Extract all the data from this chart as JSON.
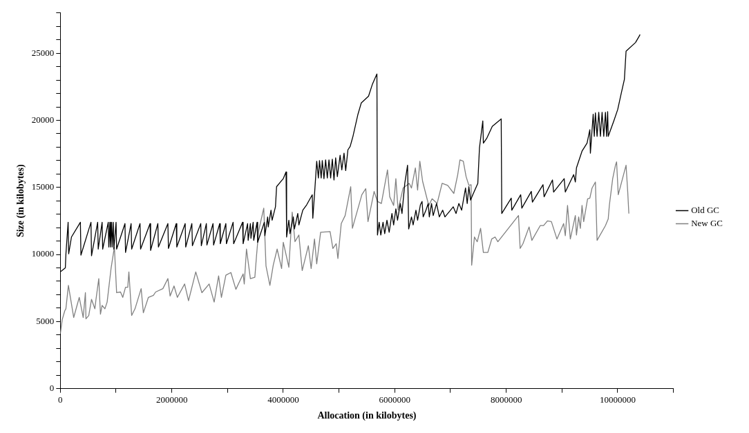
{
  "chart_data": {
    "type": "line",
    "xlabel": "Allocation (in kilobytes)",
    "ylabel": "Size (in kilobytes)",
    "legend": "right",
    "xlim": [
      0,
      11000000
    ],
    "xticks": [
      0,
      {
        "value": 1000000,
        "label": null
      },
      2000000,
      {
        "value": 3000000,
        "label": null
      },
      4000000,
      {
        "value": 5000000,
        "label": null
      },
      6000000,
      {
        "value": 7000000,
        "label": null
      },
      8000000,
      {
        "value": 9000000,
        "label": null
      },
      10000000,
      {
        "value": 11000000,
        "label": null
      }
    ],
    "ylim": [
      0,
      28000
    ],
    "yticks": [
      0,
      {
        "value": 1000,
        "label": null
      },
      {
        "value": 2000,
        "label": null
      },
      {
        "value": 3000,
        "label": null
      },
      {
        "value": 4000,
        "label": null
      },
      5000,
      {
        "value": 6000,
        "label": null
      },
      {
        "value": 7000,
        "label": null
      },
      {
        "value": 8000,
        "label": null
      },
      {
        "value": 9000,
        "label": null
      },
      10000,
      {
        "value": 11000,
        "label": null
      },
      {
        "value": 12000,
        "label": null
      },
      {
        "value": 13000,
        "label": null
      },
      {
        "value": 14000,
        "label": null
      },
      15000,
      {
        "value": 16000,
        "label": null
      },
      {
        "value": 17000,
        "label": null
      },
      {
        "value": 18000,
        "label": null
      },
      {
        "value": 19000,
        "label": null
      },
      20000,
      {
        "value": 21000,
        "label": null
      },
      {
        "value": 22000,
        "label": null
      },
      {
        "value": 23000,
        "label": null
      },
      {
        "value": 24000,
        "label": null
      },
      25000,
      {
        "value": 26000,
        "label": null
      },
      {
        "value": 27000,
        "label": null
      },
      {
        "value": 28000,
        "label": null
      }
    ],
    "series": [
      {
        "name": "Old GC",
        "color": "#000000",
        "x": [
          0,
          90000,
          100000,
          140000,
          150000,
          200000,
          360000,
          370000,
          550000,
          560000,
          670000,
          680000,
          750000,
          760000,
          860000,
          870000,
          890000,
          900000,
          920000,
          930000,
          950000,
          960000,
          1000000,
          1010000,
          1160000,
          1170000,
          1270000,
          1280000,
          1430000,
          1440000,
          1610000,
          1620000,
          1750000,
          1760000,
          1930000,
          1940000,
          2080000,
          2090000,
          2240000,
          2250000,
          2360000,
          2370000,
          2520000,
          2530000,
          2620000,
          2630000,
          2740000,
          2750000,
          2860000,
          2870000,
          2970000,
          2980000,
          3100000,
          3110000,
          3270000,
          3280000,
          3360000,
          3370000,
          3410000,
          3420000,
          3460000,
          3470000,
          3530000,
          3540000,
          3660000,
          3670000,
          3720000,
          3730000,
          3780000,
          3800000,
          3860000,
          3880000,
          3950000,
          4000000,
          4050000,
          4060000,
          4100000,
          4120000,
          4180000,
          4200000,
          4260000,
          4280000,
          4350000,
          4420000,
          4520000,
          4530000,
          4560000,
          4600000,
          4630000,
          4650000,
          4680000,
          4700000,
          4730000,
          4760000,
          4790000,
          4820000,
          4850000,
          4880000,
          4910000,
          4940000,
          4970000,
          5020000,
          5050000,
          5090000,
          5120000,
          5160000,
          5200000,
          5250000,
          5340000,
          5400000,
          5530000,
          5600000,
          5680000,
          5690000,
          5720000,
          5750000,
          5790000,
          5820000,
          5860000,
          5900000,
          5950000,
          5980000,
          6020000,
          6050000,
          6100000,
          6130000,
          6180000,
          6230000,
          6250000,
          6300000,
          6330000,
          6380000,
          6410000,
          6460000,
          6490000,
          6510000,
          6560000,
          6600000,
          6620000,
          6660000,
          6690000,
          6750000,
          6800000,
          6860000,
          6900000,
          7000000,
          7050000,
          7100000,
          7150000,
          7200000,
          7270000,
          7300000,
          7330000,
          7360000,
          7400000,
          7490000,
          7520000,
          7580000,
          7590000,
          7650000,
          7750000,
          7910000,
          7920000,
          8090000,
          8100000,
          8260000,
          8280000,
          8450000,
          8470000,
          8660000,
          8680000,
          8830000,
          8850000,
          9040000,
          9060000,
          9210000,
          9240000,
          9260000,
          9360000,
          9450000,
          9500000,
          9510000,
          9560000,
          9580000,
          9600000,
          9630000,
          9660000,
          9690000,
          9720000,
          9750000,
          9780000,
          9800000,
          9820000,
          9830000,
          9930000,
          10000000,
          10060000,
          10120000,
          10150000,
          10320000,
          10390000,
          10400000
        ],
        "values": [
          8700,
          9000,
          10000,
          12400,
          10050,
          11300,
          12400,
          9950,
          12400,
          9900,
          12400,
          10400,
          12400,
          10400,
          12400,
          10550,
          12400,
          10550,
          12400,
          10550,
          12400,
          10400,
          12400,
          10400,
          12300,
          10150,
          12300,
          10400,
          12300,
          10400,
          12300,
          10300,
          12300,
          10550,
          12300,
          10450,
          12300,
          10550,
          12300,
          10550,
          12300,
          10650,
          12300,
          10650,
          12300,
          10700,
          12300,
          10700,
          12300,
          10800,
          12300,
          10800,
          12400,
          10800,
          12400,
          10800,
          12300,
          11050,
          12300,
          11200,
          12400,
          11050,
          12400,
          10900,
          12400,
          11400,
          12800,
          12050,
          13300,
          12550,
          13550,
          15050,
          15400,
          15650,
          16150,
          11300,
          12550,
          11550,
          12800,
          11900,
          13050,
          12200,
          13300,
          13700,
          14450,
          12700,
          14450,
          16950,
          15700,
          17000,
          15700,
          17000,
          15650,
          17050,
          15700,
          17050,
          15700,
          17100,
          15550,
          17200,
          15800,
          17400,
          16300,
          17550,
          16250,
          17800,
          18050,
          18800,
          20450,
          21300,
          21800,
          22700,
          23450,
          11450,
          12400,
          11450,
          12400,
          11550,
          12550,
          11650,
          13050,
          12200,
          13400,
          12550,
          13800,
          13050,
          15300,
          16650,
          11900,
          12800,
          12200,
          13300,
          12550,
          13700,
          13950,
          12800,
          13300,
          13800,
          12800,
          13800,
          12900,
          13800,
          12800,
          13300,
          12800,
          13300,
          13550,
          13050,
          13800,
          13300,
          14950,
          13800,
          15050,
          14050,
          14450,
          15300,
          17950,
          19950,
          18300,
          18650,
          19550,
          20100,
          13050,
          14200,
          13300,
          14450,
          13450,
          14700,
          13900,
          15200,
          14300,
          15550,
          14650,
          15650,
          14650,
          15950,
          15400,
          16450,
          17700,
          18300,
          19300,
          17550,
          20450,
          18800,
          20550,
          18800,
          20600,
          18800,
          20600,
          18800,
          20600,
          18800,
          20650,
          18800,
          19950,
          20800,
          21950,
          23050,
          25150,
          25800,
          26300,
          26400
        ]
      },
      {
        "name": "New GC",
        "color": "#808080",
        "x": [
          0,
          35000,
          80000,
          100000,
          145000,
          240000,
          340000,
          410000,
          450000,
          460000,
          510000,
          560000,
          620000,
          640000,
          690000,
          720000,
          750000,
          800000,
          840000,
          910000,
          970000,
          1010000,
          1080000,
          1120000,
          1170000,
          1210000,
          1230000,
          1280000,
          1340000,
          1450000,
          1490000,
          1580000,
          1670000,
          1710000,
          1840000,
          1930000,
          1970000,
          2040000,
          2100000,
          2230000,
          2300000,
          2430000,
          2540000,
          2670000,
          2760000,
          2840000,
          2890000,
          2970000,
          3060000,
          3150000,
          3280000,
          3300000,
          3340000,
          3410000,
          3490000,
          3520000,
          3560000,
          3650000,
          3690000,
          3760000,
          3820000,
          3890000,
          3970000,
          4000000,
          4060000,
          4100000,
          4160000,
          4210000,
          4280000,
          4340000,
          4450000,
          4500000,
          4560000,
          4600000,
          4670000,
          4840000,
          4890000,
          4950000,
          4980000,
          5040000,
          5110000,
          5210000,
          5240000,
          5410000,
          5480000,
          5520000,
          5630000,
          5690000,
          5760000,
          5870000,
          5910000,
          5980000,
          6020000,
          6060000,
          6150000,
          6260000,
          6300000,
          6370000,
          6410000,
          6450000,
          6500000,
          6610000,
          6670000,
          6760000,
          6850000,
          6950000,
          7060000,
          7130000,
          7170000,
          7230000,
          7280000,
          7330000,
          7370000,
          7380000,
          7430000,
          7480000,
          7540000,
          7590000,
          7670000,
          7740000,
          7800000,
          7850000,
          8220000,
          8250000,
          8300000,
          8410000,
          8460000,
          8610000,
          8670000,
          8740000,
          8810000,
          8910000,
          9030000,
          9060000,
          9100000,
          9150000,
          9240000,
          9260000,
          9300000,
          9330000,
          9360000,
          9390000,
          9460000,
          9500000,
          9540000,
          9600000,
          9630000,
          9780000,
          9830000,
          9850000,
          9910000,
          9960000,
          9980000,
          10010000,
          10150000,
          10180000,
          10200000
        ],
        "values": [
          4100,
          5150,
          5800,
          5950,
          7700,
          5300,
          6800,
          5300,
          7150,
          5200,
          5450,
          6650,
          5950,
          6650,
          8200,
          5550,
          6200,
          5950,
          6450,
          8950,
          10550,
          7150,
          7200,
          6800,
          7550,
          7550,
          8700,
          5450,
          5950,
          7450,
          5650,
          6800,
          6950,
          7200,
          7450,
          8200,
          6900,
          7650,
          6800,
          7800,
          6550,
          8700,
          7150,
          7800,
          6450,
          8400,
          6800,
          8450,
          8650,
          7400,
          8550,
          7800,
          10400,
          8200,
          8300,
          9900,
          11800,
          13450,
          9150,
          7700,
          9200,
          10400,
          8950,
          10900,
          9800,
          9050,
          13150,
          10950,
          11450,
          8800,
          10650,
          8950,
          11150,
          9300,
          11650,
          11700,
          10450,
          10800,
          9700,
          12300,
          12900,
          15050,
          11950,
          14450,
          14900,
          12450,
          14700,
          13950,
          13800,
          16300,
          14300,
          13650,
          15650,
          13300,
          14950,
          15300,
          14950,
          16450,
          14800,
          16950,
          15450,
          13650,
          14150,
          13800,
          15300,
          15150,
          14550,
          15950,
          17050,
          16950,
          15800,
          15150,
          15200,
          9200,
          11300,
          10950,
          11950,
          10150,
          10150,
          11150,
          11300,
          10950,
          12900,
          10450,
          10800,
          12050,
          11050,
          12150,
          12150,
          12500,
          12450,
          11150,
          12300,
          11400,
          13650,
          11150,
          12900,
          11450,
          12800,
          11950,
          13650,
          12450,
          14150,
          14200,
          14950,
          15400,
          11050,
          12150,
          12650,
          13650,
          15650,
          16650,
          16900,
          14450,
          16650,
          14650,
          13050
        ]
      }
    ]
  }
}
